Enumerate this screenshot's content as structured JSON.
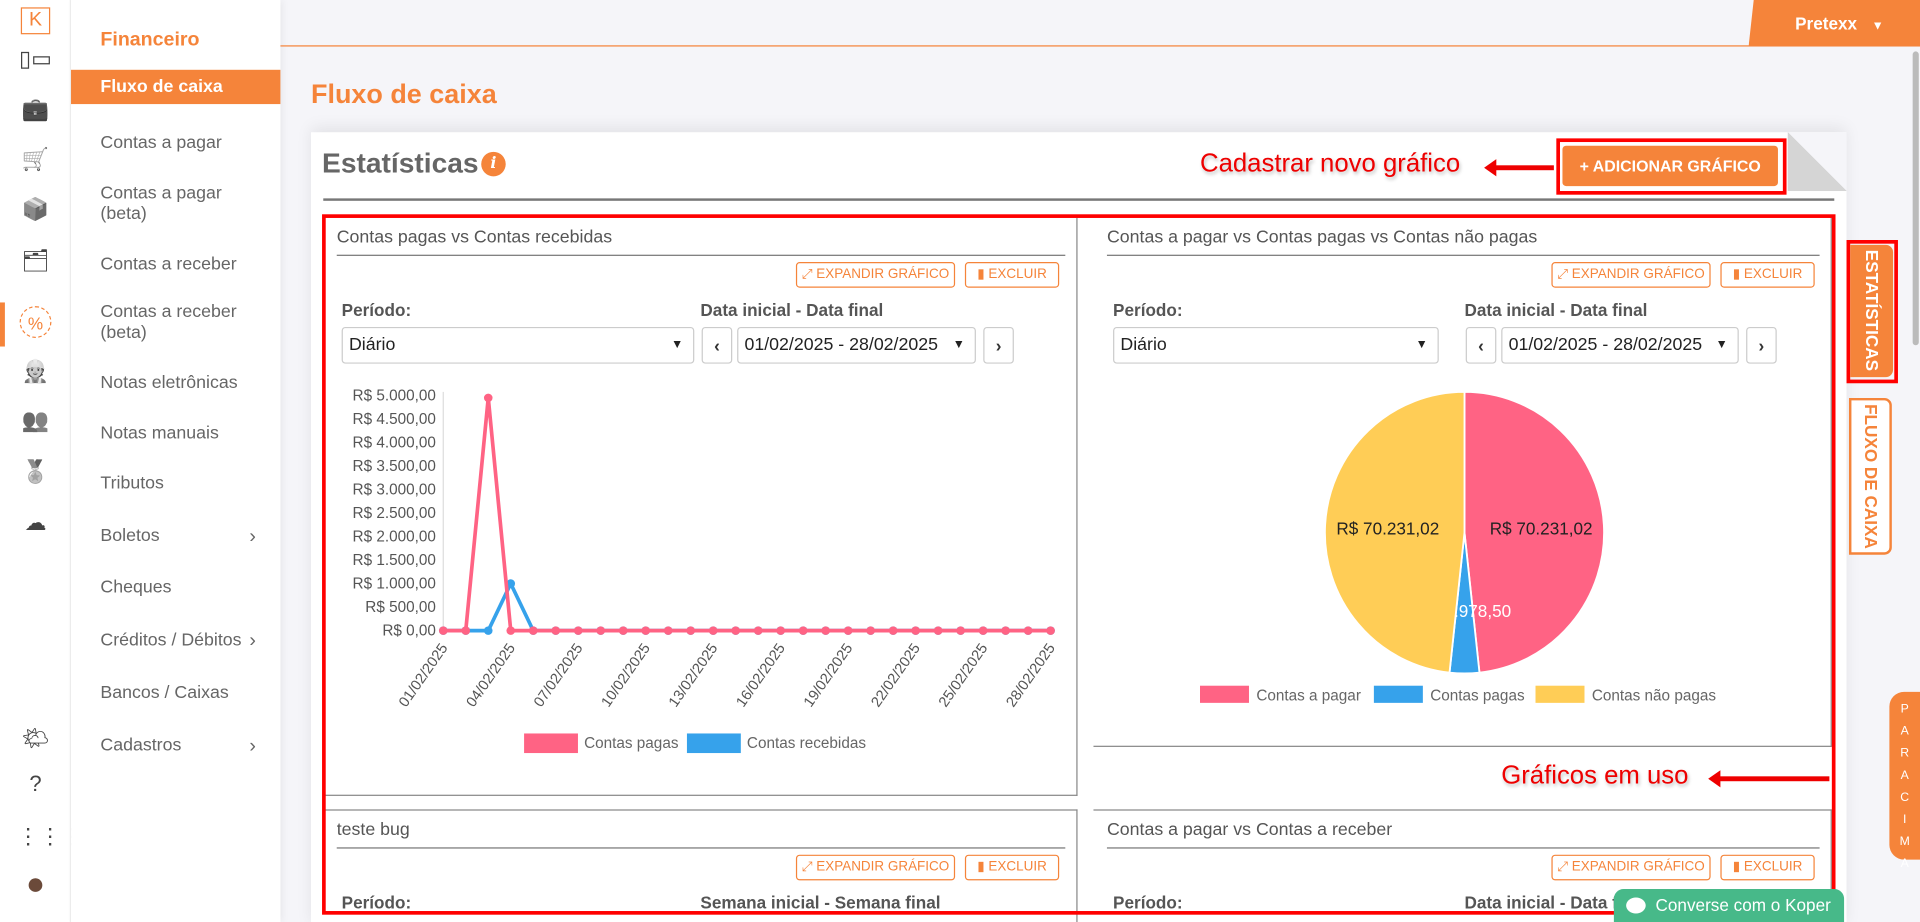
{
  "header": {
    "user": "Pretexx",
    "page_title": "Fluxo de caixa"
  },
  "sidebar": {
    "section": "Financeiro",
    "items": [
      {
        "label": "Fluxo de caixa",
        "active": true
      },
      {
        "label": "Contas a pagar"
      },
      {
        "label": "Contas a pagar\n(beta)"
      },
      {
        "label": "Contas a receber"
      },
      {
        "label": "Contas a receber\n(beta)"
      },
      {
        "label": "Notas eletrônicas"
      },
      {
        "label": "Notas manuais"
      },
      {
        "label": "Tributos"
      },
      {
        "label": "Boletos",
        "chevron": true
      },
      {
        "label": "Cheques"
      },
      {
        "label": "Créditos / Débitos",
        "chevron": true
      },
      {
        "label": "Bancos / Caixas"
      },
      {
        "label": "Cadastros",
        "chevron": true
      }
    ]
  },
  "rail_icons": [
    "logo-k-icon",
    "dashboard-icon",
    "briefcase-icon",
    "cart-icon",
    "box-icon",
    "folder-money-icon",
    "percent-icon",
    "worker-icon",
    "users-icon",
    "award-icon",
    "cloud-upload-icon",
    "weather-icon",
    "help-icon",
    "apps-grid-icon",
    "avatar"
  ],
  "card": {
    "title": "Estatísticas",
    "add_button": "+ ADICIONAR GRÁFICO"
  },
  "annotations": {
    "add": "Cadastrar novo gráfico",
    "in_use": "Gráficos em uso"
  },
  "panel_labels": {
    "expand": "⤢ EXPANDIR GRÁFICO",
    "delete": "▮ EXCLUIR",
    "period": "Período:"
  },
  "panels": [
    {
      "title": "Contas pagas vs Contas recebidas",
      "range_label": "Data inicial - Data final",
      "period": "Diário",
      "range": "01/02/2025 - 28/02/2025"
    },
    {
      "title": "Contas a pagar vs Contas pagas vs Contas não pagas",
      "range_label": "Data inicial - Data final",
      "period": "Diário",
      "range": "01/02/2025 - 28/02/2025"
    },
    {
      "title": "teste bug",
      "range_label": "Semana inicial - Semana final"
    },
    {
      "title": "Contas a pagar vs Contas a receber",
      "range_label": "Data inicial - Data final"
    }
  ],
  "side_tabs": {
    "stats": "ESTATÍSTICAS",
    "flow": "FLUXO DE CAIXA",
    "top": "PARA CIMA"
  },
  "chat": "Converse com o Koper",
  "chart_data": [
    {
      "type": "line",
      "ylim": [
        0,
        5000
      ],
      "yticks": [
        "R$ 0,00",
        "R$ 500,00",
        "R$ 1.000,00",
        "R$ 1.500,00",
        "R$ 2.000,00",
        "R$ 2.500,00",
        "R$ 3.000,00",
        "R$ 3.500,00",
        "R$ 4.000,00",
        "R$ 4.500,00",
        "R$ 5.000,00"
      ],
      "xticks": [
        "01/02/2025",
        "04/02/2025",
        "07/02/2025",
        "10/02/2025",
        "13/02/2025",
        "16/02/2025",
        "19/02/2025",
        "22/02/2025",
        "25/02/2025",
        "28/02/2025"
      ],
      "x": [
        "01/02/2025",
        "02/02/2025",
        "03/02/2025",
        "04/02/2025",
        "05/02/2025",
        "06/02/2025",
        "07/02/2025",
        "08/02/2025",
        "09/02/2025",
        "10/02/2025",
        "11/02/2025",
        "12/02/2025",
        "13/02/2025",
        "14/02/2025",
        "15/02/2025",
        "16/02/2025",
        "17/02/2025",
        "18/02/2025",
        "19/02/2025",
        "20/02/2025",
        "21/02/2025",
        "22/02/2025",
        "23/02/2025",
        "24/02/2025",
        "25/02/2025",
        "26/02/2025",
        "27/02/2025",
        "28/02/2025"
      ],
      "series": [
        {
          "name": "Contas pagas",
          "color": "#ff6384",
          "values": [
            0,
            0,
            4950,
            0,
            0,
            0,
            0,
            0,
            0,
            0,
            0,
            0,
            0,
            0,
            0,
            0,
            0,
            0,
            0,
            0,
            0,
            0,
            0,
            0,
            0,
            0,
            0,
            0
          ]
        },
        {
          "name": "Contas recebidas",
          "color": "#36a2eb",
          "values": [
            0,
            0,
            0,
            1000,
            0,
            0,
            0,
            0,
            0,
            0,
            0,
            0,
            0,
            0,
            0,
            0,
            0,
            0,
            0,
            0,
            0,
            0,
            0,
            0,
            0,
            0,
            0,
            0
          ]
        }
      ],
      "legend": "bottom"
    },
    {
      "type": "pie",
      "legend": "bottom",
      "slices": [
        {
          "name": "Contas a pagar",
          "value": 70231.02,
          "label": "R$ 70.231,02",
          "color": "#ff6384"
        },
        {
          "name": "Contas pagas",
          "value": 4978.5,
          "label": "R$ 4.978,50",
          "color": "#36a2eb"
        },
        {
          "name": "Contas não pagas",
          "value": 70231.02,
          "label": "R$ 70.231,02",
          "color": "#ffcd56"
        }
      ]
    }
  ]
}
